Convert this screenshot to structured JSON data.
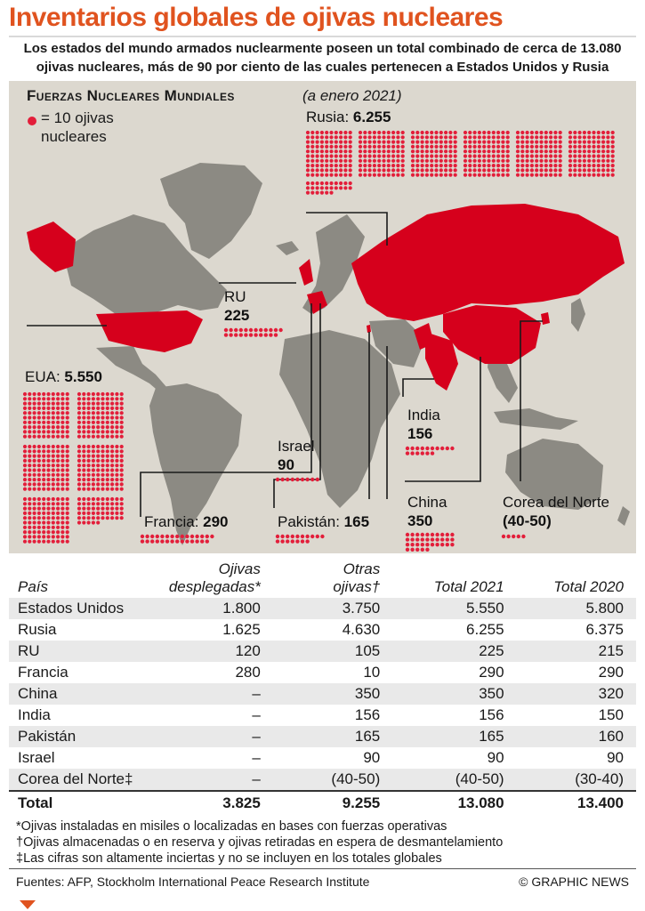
{
  "title": "Inventarios globales de ojivas nucleares",
  "subtitle": "Los estados del mundo armados nuclearmente poseen un total combinado de cerca de 13.080 ojivas nucleares, más de 90 por ciento de las cuales pertenecen a Estados Unidos y Rusia",
  "panel": {
    "heading": "Fuerzas Nucleares Mundiales",
    "date": "(a enero 2021)",
    "legend_label": "= 10 ojivas nucleares",
    "dot_color": "#e31e3a",
    "land_color": "#8c8a83",
    "sea_color": "#dcd8cf"
  },
  "chart_data": {
    "type": "table",
    "title": "Fuerzas Nucleares Mundiales",
    "unit": "= 10 ojivas nucleares",
    "map_labels": [
      {
        "country": "Rusia",
        "value": "6.255",
        "dots": 626
      },
      {
        "country": "EUA",
        "value": "5.550",
        "dots": 555
      },
      {
        "country": "RU",
        "value": "225",
        "dots": 23
      },
      {
        "country": "Francia",
        "value": "290",
        "dots": 29
      },
      {
        "country": "Israel",
        "value": "90",
        "dots": 9
      },
      {
        "country": "Pakistán",
        "value": "165",
        "dots": 17
      },
      {
        "country": "India",
        "value": "156",
        "dots": 16
      },
      {
        "country": "China",
        "value": "350",
        "dots": 35
      },
      {
        "country": "Corea del Norte",
        "value": "(40-50)",
        "dots": 5
      }
    ],
    "columns": [
      "País",
      "Ojivas desplegadas*",
      "Otras ojivas†",
      "Total 2021",
      "Total 2020"
    ],
    "rows": [
      [
        "Estados Unidos",
        "1.800",
        "3.750",
        "5.550",
        "5.800"
      ],
      [
        "Rusia",
        "1.625",
        "4.630",
        "6.255",
        "6.375"
      ],
      [
        "RU",
        "120",
        "105",
        "225",
        "215"
      ],
      [
        "Francia",
        "280",
        "10",
        "290",
        "290"
      ],
      [
        "China",
        "–",
        "350",
        "350",
        "320"
      ],
      [
        "India",
        "–",
        "156",
        "156",
        "150"
      ],
      [
        "Pakistán",
        "–",
        "165",
        "165",
        "160"
      ],
      [
        "Israel",
        "–",
        "90",
        "90",
        "90"
      ],
      [
        "Corea del Norte‡",
        "–",
        "(40-50)",
        "(40-50)",
        "(30-40)"
      ]
    ],
    "total": [
      "Total",
      "3.825",
      "9.255",
      "13.080",
      "13.400"
    ]
  },
  "table_head": {
    "c0": "País",
    "c1a": "Ojivas",
    "c1b": "desplegadas*",
    "c2a": "Otras",
    "c2b": "ojivas†",
    "c3": "Total 2021",
    "c4": "Total 2020"
  },
  "notes": [
    "*Ojivas instaladas en misiles o localizadas en bases con fuerzas operativas",
    "†Ojivas almacenadas o en reserva y ojivas retiradas en espera de desmantelamiento",
    "‡Las cifras son altamente inciertas y no se incluyen en los totales globales"
  ],
  "source": "Fuentes: AFP, Stockholm International Peace Research Institute",
  "credit": "© GRAPHIC NEWS"
}
